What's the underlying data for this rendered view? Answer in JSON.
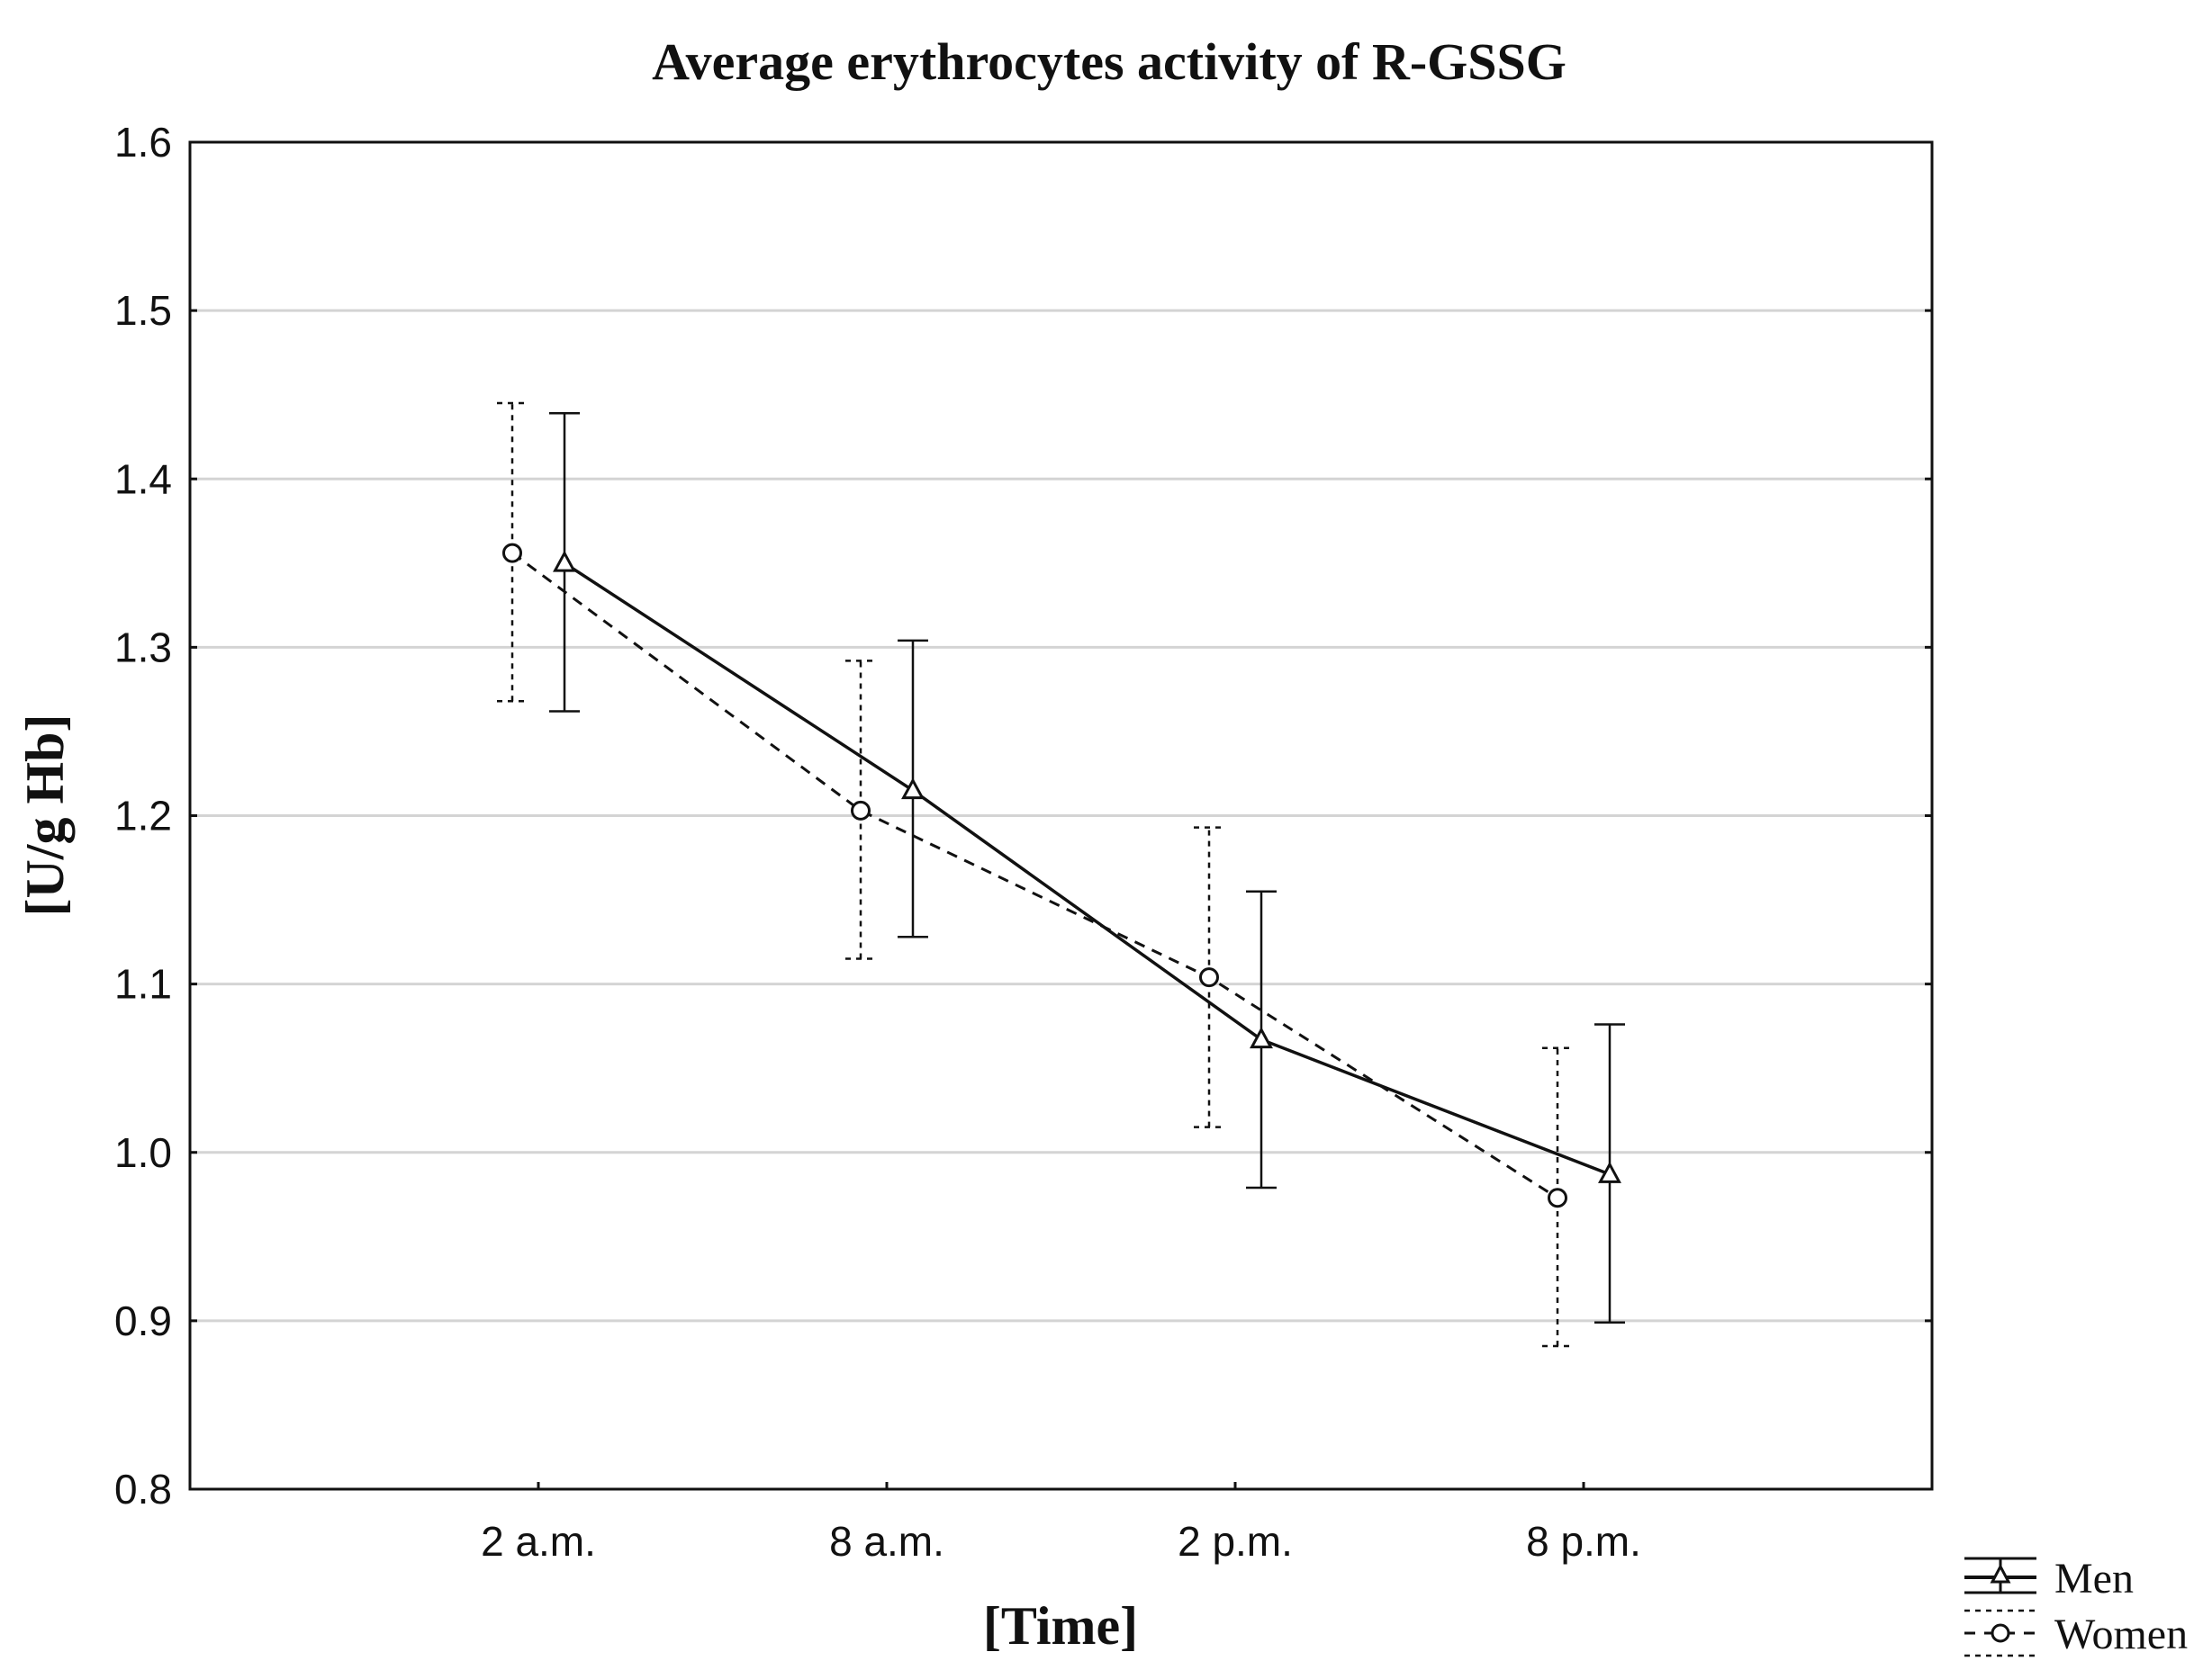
{
  "chart_data": {
    "type": "line",
    "title": "Average erythrocytes activity of R-GSSG",
    "xlabel": "[Time]",
    "ylabel": "[U/g Hb]",
    "categories": [
      "2 a.m.",
      "8 a.m.",
      "2 p.m.",
      "8 p.m."
    ],
    "ylim": [
      0.8,
      1.6
    ],
    "yticks": [
      "0.8",
      "0.9",
      "1.0",
      "1.1",
      "1.2",
      "1.3",
      "1.4",
      "1.5",
      "1.6"
    ],
    "grid": true,
    "legend_position": "bottom-right",
    "error_bars": true,
    "series": [
      {
        "name": "Men",
        "marker": "triangle",
        "line_style": "solid",
        "color": "#111111",
        "values": [
          1.35,
          1.215,
          1.067,
          0.987
        ],
        "lower": [
          1.262,
          1.128,
          0.979,
          0.899
        ],
        "upper": [
          1.439,
          1.304,
          1.155,
          1.076
        ]
      },
      {
        "name": "Women",
        "marker": "circle",
        "line_style": "dashed",
        "color": "#111111",
        "values": [
          1.356,
          1.203,
          1.104,
          0.973
        ],
        "lower": [
          1.268,
          1.115,
          1.015,
          0.885
        ],
        "upper": [
          1.445,
          1.292,
          1.193,
          1.062
        ]
      }
    ]
  }
}
